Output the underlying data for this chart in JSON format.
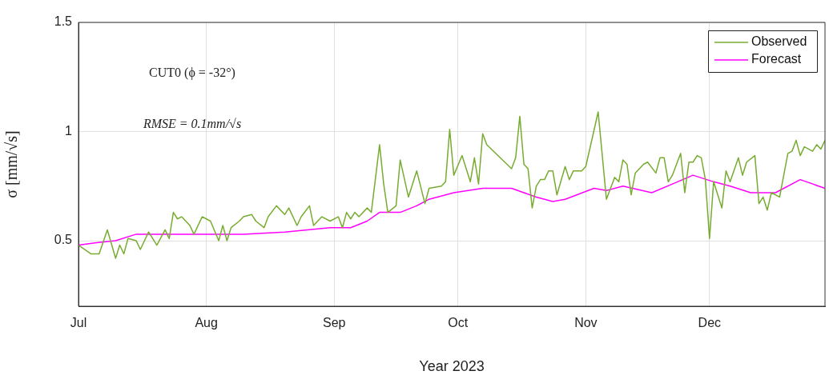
{
  "chart_data": {
    "type": "line",
    "xlabel": "Year 2023",
    "ylabel": "σ [mm/√s]",
    "annotations": [
      "CUT0 (ϕ = -32°)",
      "RMSE = 0.1mm/√s"
    ],
    "xlim": [
      "2023-07-01",
      "2023-12-29"
    ],
    "xticks": [
      {
        "value": "2023-07-01",
        "label": "Jul"
      },
      {
        "value": "2023-08-01",
        "label": "Aug"
      },
      {
        "value": "2023-09-01",
        "label": "Sep"
      },
      {
        "value": "2023-10-01",
        "label": "Oct"
      },
      {
        "value": "2023-11-01",
        "label": "Nov"
      },
      {
        "value": "2023-12-01",
        "label": "Dec"
      }
    ],
    "ylim": [
      0.2,
      1.5
    ],
    "yticks": [
      0.5,
      1,
      1.5
    ],
    "grid": true,
    "legend": "top right",
    "marker": "none",
    "line_style": "solid",
    "series": [
      {
        "name": "Observed",
        "color": "#77ac30",
        "x": [
          "2023-07-01",
          "2023-07-04",
          "2023-07-06",
          "2023-07-08",
          "2023-07-10",
          "2023-07-11",
          "2023-07-12",
          "2023-07-13",
          "2023-07-15",
          "2023-07-16",
          "2023-07-18",
          "2023-07-20",
          "2023-07-22",
          "2023-07-23",
          "2023-07-24",
          "2023-07-25",
          "2023-07-26",
          "2023-07-28",
          "2023-07-29",
          "2023-07-31",
          "2023-08-02",
          "2023-08-04",
          "2023-08-05",
          "2023-08-06",
          "2023-08-07",
          "2023-08-09",
          "2023-08-10",
          "2023-08-12",
          "2023-08-13",
          "2023-08-15",
          "2023-08-16",
          "2023-08-18",
          "2023-08-20",
          "2023-08-21",
          "2023-08-23",
          "2023-08-24",
          "2023-08-26",
          "2023-08-27",
          "2023-08-29",
          "2023-08-31",
          "2023-09-02",
          "2023-09-03",
          "2023-09-04",
          "2023-09-05",
          "2023-09-06",
          "2023-09-07",
          "2023-09-09",
          "2023-09-10",
          "2023-09-12",
          "2023-09-13",
          "2023-09-14",
          "2023-09-16",
          "2023-09-17",
          "2023-09-19",
          "2023-09-21",
          "2023-09-23",
          "2023-09-24",
          "2023-09-27",
          "2023-09-28",
          "2023-09-29",
          "2023-09-30",
          "2023-10-02",
          "2023-10-04",
          "2023-10-05",
          "2023-10-06",
          "2023-10-07",
          "2023-10-08",
          "2023-10-14",
          "2023-10-15",
          "2023-10-16",
          "2023-10-17",
          "2023-10-18",
          "2023-10-19",
          "2023-10-20",
          "2023-10-21",
          "2023-10-22",
          "2023-10-23",
          "2023-10-24",
          "2023-10-25",
          "2023-10-27",
          "2023-10-28",
          "2023-10-29",
          "2023-10-31",
          "2023-11-01",
          "2023-11-04",
          "2023-11-06",
          "2023-11-08",
          "2023-11-09",
          "2023-11-10",
          "2023-11-11",
          "2023-11-12",
          "2023-11-13",
          "2023-11-15",
          "2023-11-16",
          "2023-11-18",
          "2023-11-19",
          "2023-11-20",
          "2023-11-21",
          "2023-11-22",
          "2023-11-24",
          "2023-11-25",
          "2023-11-26",
          "2023-11-27",
          "2023-11-28",
          "2023-11-29",
          "2023-11-30",
          "2023-12-01",
          "2023-12-02",
          "2023-12-04",
          "2023-12-05",
          "2023-12-06",
          "2023-12-08",
          "2023-12-09",
          "2023-12-10",
          "2023-12-12",
          "2023-12-13",
          "2023-12-14",
          "2023-12-15",
          "2023-12-16",
          "2023-12-18",
          "2023-12-20",
          "2023-12-21",
          "2023-12-22",
          "2023-12-23",
          "2023-12-24",
          "2023-12-26",
          "2023-12-27",
          "2023-12-28",
          "2023-12-29"
        ],
        "values": [
          0.48,
          0.44,
          0.44,
          0.55,
          0.42,
          0.48,
          0.44,
          0.51,
          0.5,
          0.46,
          0.54,
          0.48,
          0.55,
          0.51,
          0.63,
          0.6,
          0.61,
          0.57,
          0.53,
          0.61,
          0.59,
          0.5,
          0.57,
          0.5,
          0.56,
          0.59,
          0.61,
          0.62,
          0.59,
          0.56,
          0.61,
          0.66,
          0.62,
          0.65,
          0.57,
          0.61,
          0.66,
          0.57,
          0.61,
          0.59,
          0.61,
          0.56,
          0.63,
          0.6,
          0.63,
          0.61,
          0.65,
          0.63,
          0.94,
          0.76,
          0.63,
          0.66,
          0.87,
          0.7,
          0.82,
          0.67,
          0.74,
          0.75,
          0.77,
          1.01,
          0.8,
          0.89,
          0.77,
          0.88,
          0.76,
          0.99,
          0.94,
          0.83,
          0.88,
          1.07,
          0.85,
          0.83,
          0.65,
          0.75,
          0.78,
          0.78,
          0.82,
          0.82,
          0.71,
          0.84,
          0.78,
          0.82,
          0.82,
          0.84,
          1.09,
          0.69,
          0.79,
          0.77,
          0.87,
          0.85,
          0.71,
          0.81,
          0.85,
          0.86,
          0.81,
          0.88,
          0.88,
          0.77,
          0.8,
          0.9,
          0.72,
          0.86,
          0.86,
          0.89,
          0.88,
          0.78,
          0.51,
          0.77,
          0.65,
          0.82,
          0.77,
          0.88,
          0.8,
          0.86,
          0.89,
          0.67,
          0.7,
          0.64,
          0.72,
          0.7,
          0.9,
          0.91,
          0.96,
          0.89,
          0.93,
          0.91,
          0.94,
          0.92,
          0.96
        ]
      },
      {
        "name": "Forecast",
        "color": "#ff00ff",
        "x": [
          "2023-07-01",
          "2023-07-05",
          "2023-07-10",
          "2023-07-15",
          "2023-07-22",
          "2023-08-01",
          "2023-08-10",
          "2023-08-20",
          "2023-08-31",
          "2023-09-05",
          "2023-09-09",
          "2023-09-12",
          "2023-09-17",
          "2023-09-21",
          "2023-09-24",
          "2023-09-30",
          "2023-10-07",
          "2023-10-14",
          "2023-10-20",
          "2023-10-24",
          "2023-10-27",
          "2023-11-03",
          "2023-11-06",
          "2023-11-10",
          "2023-11-17",
          "2023-11-22",
          "2023-11-27",
          "2023-12-02",
          "2023-12-06",
          "2023-12-11",
          "2023-12-17",
          "2023-12-23",
          "2023-12-29"
        ],
        "values": [
          0.48,
          0.49,
          0.5,
          0.53,
          0.53,
          0.53,
          0.53,
          0.54,
          0.56,
          0.56,
          0.59,
          0.63,
          0.63,
          0.66,
          0.69,
          0.72,
          0.74,
          0.74,
          0.7,
          0.68,
          0.69,
          0.74,
          0.73,
          0.75,
          0.72,
          0.76,
          0.8,
          0.77,
          0.75,
          0.72,
          0.72,
          0.78,
          0.74
        ]
      }
    ]
  }
}
